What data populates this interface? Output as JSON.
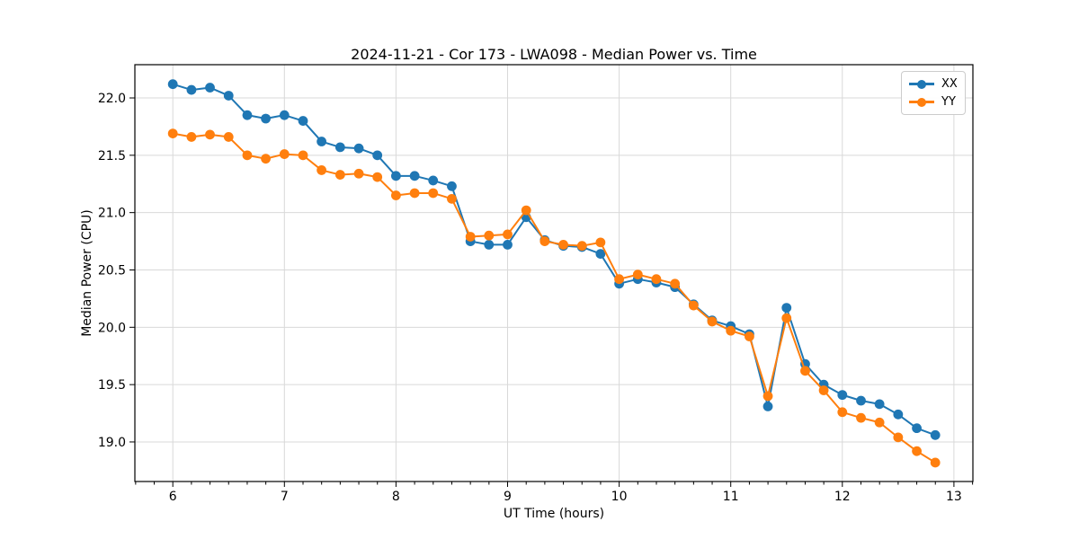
{
  "figure": {
    "title": "2024-11-21 - Cor 173 - LWA098 - Median Power vs. Time",
    "xlabel": "UT Time (hours)",
    "ylabel": "Median Power (CPU)"
  },
  "legend": {
    "items": [
      {
        "label": "XX",
        "color": "#1f77b4"
      },
      {
        "label": "YY",
        "color": "#ff7f0e"
      }
    ]
  },
  "chart_data": {
    "type": "line",
    "title": "2024-11-21 - Cor 173 - LWA098 - Median Power vs. Time",
    "xlabel": "UT Time (hours)",
    "ylabel": "Median Power (CPU)",
    "x": [
      6.0,
      6.167,
      6.333,
      6.5,
      6.667,
      6.833,
      7.0,
      7.167,
      7.333,
      7.5,
      7.667,
      7.833,
      8.0,
      8.167,
      8.333,
      8.5,
      8.667,
      8.833,
      9.0,
      9.167,
      9.333,
      9.5,
      9.667,
      9.833,
      10.0,
      10.167,
      10.333,
      10.5,
      10.667,
      10.833,
      11.0,
      11.167,
      11.333,
      11.5,
      11.667,
      11.833,
      12.0,
      12.167,
      12.333,
      12.5,
      12.667,
      12.833
    ],
    "series": [
      {
        "name": "XX",
        "color": "#1f77b4",
        "values": [
          22.12,
          22.07,
          22.09,
          22.02,
          21.85,
          21.82,
          21.85,
          21.8,
          21.62,
          21.57,
          21.56,
          21.5,
          21.32,
          21.32,
          21.28,
          21.23,
          20.75,
          20.72,
          20.72,
          20.96,
          20.76,
          20.71,
          20.7,
          20.64,
          20.38,
          20.42,
          20.39,
          20.35,
          20.2,
          20.06,
          20.01,
          19.94,
          19.31,
          20.17,
          19.68,
          19.5,
          19.41,
          19.36,
          19.33,
          19.24,
          19.12,
          19.06
        ]
      },
      {
        "name": "YY",
        "color": "#ff7f0e",
        "values": [
          21.69,
          21.66,
          21.68,
          21.66,
          21.5,
          21.47,
          21.51,
          21.5,
          21.37,
          21.33,
          21.34,
          21.31,
          21.15,
          21.17,
          21.17,
          21.12,
          20.79,
          20.8,
          20.81,
          21.02,
          20.75,
          20.72,
          20.71,
          20.74,
          20.42,
          20.46,
          20.42,
          20.38,
          20.19,
          20.05,
          19.97,
          19.92,
          19.4,
          20.08,
          19.62,
          19.45,
          19.26,
          19.21,
          19.17,
          19.04,
          18.92,
          18.82
        ]
      }
    ],
    "xlim": [
      5.66,
      13.17
    ],
    "ylim": [
      18.655,
      22.29
    ],
    "xticks": [
      6,
      7,
      8,
      9,
      10,
      11,
      12,
      13
    ],
    "yticks": [
      19.0,
      19.5,
      20.0,
      20.5,
      21.0,
      21.5,
      22.0
    ],
    "x_minor_step": 0.16667,
    "grid": true,
    "grid_color": "#d9d9d9",
    "legend_position": "upper right",
    "marker": "o",
    "line_width": 2,
    "marker_radius": 5.4
  }
}
